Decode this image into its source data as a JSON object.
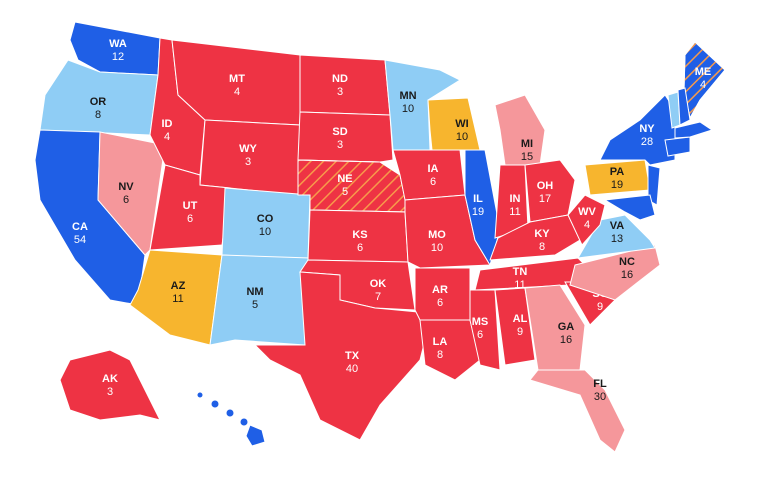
{
  "map": {
    "states": [
      {
        "abbr": "WA",
        "votes": 12,
        "color": "#1f5fe6"
      },
      {
        "abbr": "OR",
        "votes": 8,
        "color": "#8fcdf5"
      },
      {
        "abbr": "CA",
        "votes": 54,
        "color": "#1f5fe6"
      },
      {
        "abbr": "NV",
        "votes": 6,
        "color": "#f5979b"
      },
      {
        "abbr": "ID",
        "votes": 4,
        "color": "#ee3344"
      },
      {
        "abbr": "MT",
        "votes": 4,
        "color": "#ee3344"
      },
      {
        "abbr": "WY",
        "votes": 3,
        "color": "#ee3344"
      },
      {
        "abbr": "UT",
        "votes": 6,
        "color": "#ee3344"
      },
      {
        "abbr": "CO",
        "votes": 10,
        "color": "#8fcdf5"
      },
      {
        "abbr": "AZ",
        "votes": 11,
        "color": "#f7b52e"
      },
      {
        "abbr": "NM",
        "votes": 5,
        "color": "#8fcdf5"
      },
      {
        "abbr": "ND",
        "votes": 3,
        "color": "#ee3344"
      },
      {
        "abbr": "SD",
        "votes": 3,
        "color": "#ee3344"
      },
      {
        "abbr": "NE",
        "votes": 5,
        "color": "#ee3344",
        "pattern": "hatched"
      },
      {
        "abbr": "KS",
        "votes": 6,
        "color": "#ee3344"
      },
      {
        "abbr": "OK",
        "votes": 7,
        "color": "#ee3344"
      },
      {
        "abbr": "TX",
        "votes": 40,
        "color": "#ee3344"
      },
      {
        "abbr": "MN",
        "votes": 10,
        "color": "#8fcdf5"
      },
      {
        "abbr": "IA",
        "votes": 6,
        "color": "#ee3344"
      },
      {
        "abbr": "MO",
        "votes": 10,
        "color": "#ee3344"
      },
      {
        "abbr": "AR",
        "votes": 6,
        "color": "#ee3344"
      },
      {
        "abbr": "LA",
        "votes": 8,
        "color": "#ee3344"
      },
      {
        "abbr": "WI",
        "votes": 10,
        "color": "#f7b52e"
      },
      {
        "abbr": "IL",
        "votes": 19,
        "color": "#1f5fe6"
      },
      {
        "abbr": "MI",
        "votes": 15,
        "color": "#f5979b"
      },
      {
        "abbr": "IN",
        "votes": 11,
        "color": "#ee3344"
      },
      {
        "abbr": "OH",
        "votes": 17,
        "color": "#ee3344"
      },
      {
        "abbr": "KY",
        "votes": 8,
        "color": "#ee3344"
      },
      {
        "abbr": "TN",
        "votes": 11,
        "color": "#ee3344"
      },
      {
        "abbr": "MS",
        "votes": 6,
        "color": "#ee3344"
      },
      {
        "abbr": "AL",
        "votes": 9,
        "color": "#ee3344"
      },
      {
        "abbr": "GA",
        "votes": 16,
        "color": "#f5979b"
      },
      {
        "abbr": "FL",
        "votes": 30,
        "color": "#f5979b"
      },
      {
        "abbr": "SC",
        "votes": 9,
        "color": "#ee3344"
      },
      {
        "abbr": "NC",
        "votes": 16,
        "color": "#f5979b"
      },
      {
        "abbr": "VA",
        "votes": 13,
        "color": "#8fcdf5"
      },
      {
        "abbr": "WV",
        "votes": 4,
        "color": "#ee3344"
      },
      {
        "abbr": "PA",
        "votes": 19,
        "color": "#f7b52e"
      },
      {
        "abbr": "NY",
        "votes": 28,
        "color": "#1f5fe6"
      },
      {
        "abbr": "ME",
        "votes": 4,
        "color": "#1f5fe6",
        "pattern": "hatched"
      },
      {
        "abbr": "AK",
        "votes": 3,
        "color": "#ee3344"
      }
    ]
  }
}
